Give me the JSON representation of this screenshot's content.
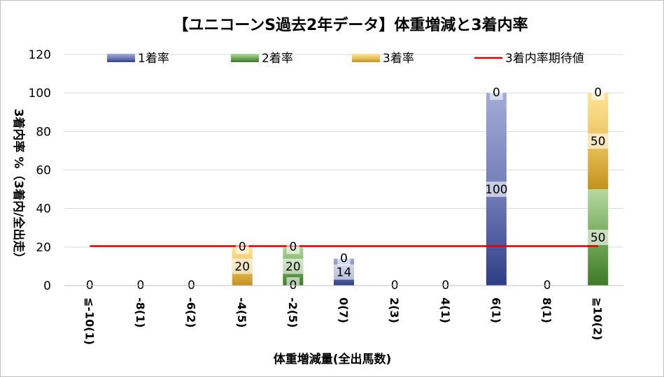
{
  "chart_data": {
    "type": "bar",
    "stacked": true,
    "title": "【ユニコーンS過去2年データ】体重増減と3着内率",
    "xlabel": "体重増減量(全出馬数)",
    "ylabel": "3着内率 %（3着内/全出走）",
    "ylim": [
      0,
      120
    ],
    "yticks": [
      0,
      20,
      40,
      60,
      80,
      100,
      120
    ],
    "grid": true,
    "legend_position": "top",
    "categories": [
      "≦-10(1)",
      "-8(1)",
      "-6(2)",
      "-4(5)",
      "-2(5)",
      "0(7)",
      "2(3)",
      "4(1)",
      "6(1)",
      "8(1)",
      "≧10(2)"
    ],
    "series": [
      {
        "name": "1着率",
        "color": "#3f4f97",
        "values": [
          0,
          0,
          0,
          0,
          0,
          14,
          0,
          0,
          100,
          0,
          0
        ],
        "labels": [
          "0",
          "0",
          "0",
          "",
          "0",
          "14",
          "0",
          "0",
          "100",
          "0",
          ""
        ]
      },
      {
        "name": "2着率",
        "color": "#4f8a35",
        "values": [
          0,
          0,
          0,
          0,
          20,
          0,
          0,
          0,
          0,
          0,
          50
        ],
        "labels": [
          "",
          "",
          "",
          "",
          "20",
          "0",
          "",
          "",
          "0",
          "",
          "50"
        ]
      },
      {
        "name": "3着率",
        "color": "#d4a227",
        "values": [
          0,
          0,
          0,
          20,
          0,
          0,
          0,
          0,
          0,
          0,
          50
        ],
        "labels": [
          "",
          "",
          "",
          "20",
          "0",
          "",
          "",
          "",
          "",
          "",
          "50"
        ]
      },
      {
        "name": "3着内率期待値",
        "type": "line",
        "color": "#e00000",
        "value": 20.5
      }
    ],
    "extra_labels": [
      {
        "category": "-4(5)",
        "value": "0"
      },
      {
        "category": "≧10(2)",
        "value": "0"
      }
    ]
  }
}
